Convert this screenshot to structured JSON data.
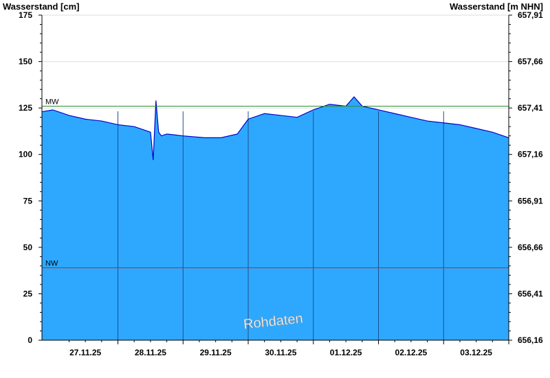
{
  "chart_data": {
    "type": "area",
    "ylabel_left": "Wasserstand [cm]",
    "ylabel_right": "Wasserstand [m NHN]",
    "ylim": [
      0,
      175
    ],
    "yticks_left": [
      0,
      25,
      50,
      75,
      100,
      125,
      150,
      175
    ],
    "yticks_right": [
      "656,16",
      "656,41",
      "656,66",
      "656,91",
      "657,16",
      "657,41",
      "657,66",
      "657,91"
    ],
    "x_start": "2025-11-26T18:00",
    "x_end": "2025-12-03T22:00",
    "day_separators": [
      "2025-11-27T22:00",
      "2025-11-28T22:00",
      "2025-11-29T22:00",
      "2025-11-30T22:00",
      "2025-12-01T22:00",
      "2025-12-02T22:00"
    ],
    "x_tick_labels": [
      "27.11.25",
      "28.11.25",
      "29.11.25",
      "30.11.25",
      "01.12.25",
      "02.12.25",
      "03.12.25"
    ],
    "reference_lines": [
      {
        "label": "MW",
        "value": 126,
        "color": "#2e8b2e"
      },
      {
        "label": "NW",
        "value": 39,
        "color": "#cc2222"
      }
    ],
    "watermark": "Rohdaten",
    "fill_color": "#2ea8ff",
    "line_color": "#0000cc",
    "series": [
      {
        "x": [
          "2025-11-26T18:00",
          "2025-11-26T22:00",
          "2025-11-27T04:00",
          "2025-11-27T10:00",
          "2025-11-27T16:00",
          "2025-11-27T22:00",
          "2025-11-28T04:00",
          "2025-11-28T08:00",
          "2025-11-28T10:00",
          "2025-11-28T11:00",
          "2025-11-28T12:00",
          "2025-11-28T13:00",
          "2025-11-28T14:00",
          "2025-11-28T16:00",
          "2025-11-28T22:00",
          "2025-11-29T06:00",
          "2025-11-29T12:00",
          "2025-11-29T18:00",
          "2025-11-29T22:00",
          "2025-11-30T04:00",
          "2025-11-30T10:00",
          "2025-11-30T16:00",
          "2025-11-30T22:00",
          "2025-12-01T04:00",
          "2025-12-01T10:00",
          "2025-12-01T13:00",
          "2025-12-01T16:00",
          "2025-12-01T22:00",
          "2025-12-02T04:00",
          "2025-12-02T10:00",
          "2025-12-02T16:00",
          "2025-12-02T22:00",
          "2025-12-03T04:00",
          "2025-12-03T10:00",
          "2025-12-03T16:00",
          "2025-12-03T22:00"
        ],
        "y": [
          123,
          124,
          121,
          119,
          118,
          116,
          115,
          113,
          112,
          97,
          129,
          112,
          110,
          111,
          110,
          109,
          109,
          111,
          119,
          122,
          121,
          120,
          124,
          127,
          126,
          131,
          126,
          124,
          122,
          120,
          118,
          117,
          116,
          114,
          112,
          109
        ]
      }
    ]
  }
}
